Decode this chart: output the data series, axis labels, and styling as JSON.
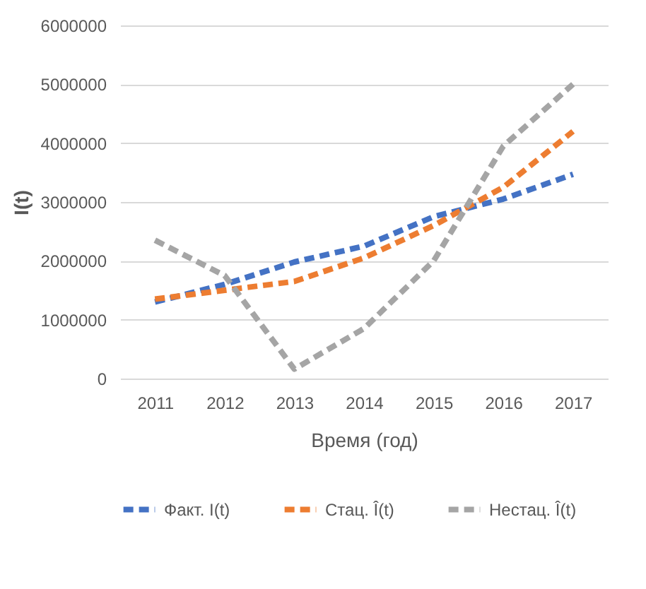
{
  "chart_data": {
    "type": "line",
    "xlabel": "Время (год)",
    "ylabel": "I(t)",
    "categories": [
      "2011",
      "2012",
      "2013",
      "2014",
      "2015",
      "2016",
      "2017"
    ],
    "series": [
      {
        "name": "Факт. I(t)",
        "color": "#4472c4",
        "values": [
          1300000,
          1600000,
          1980000,
          2250000,
          2750000,
          3050000,
          3470000
        ]
      },
      {
        "name": "Стац. Î(t)",
        "color": "#ed7d31",
        "values": [
          1350000,
          1500000,
          1650000,
          2050000,
          2600000,
          3250000,
          4200000
        ]
      },
      {
        "name": "Нестац. Î(t)",
        "color": "#a5a5a5",
        "values": [
          2350000,
          1750000,
          160000,
          850000,
          2000000,
          3950000,
          5000000
        ]
      }
    ],
    "ylim": [
      0,
      6000000
    ],
    "yticks": [
      0,
      1000000,
      2000000,
      3000000,
      4000000,
      5000000,
      6000000
    ],
    "grid": "y",
    "legend": "bottom",
    "line_style": "dashed",
    "marker": "none"
  }
}
